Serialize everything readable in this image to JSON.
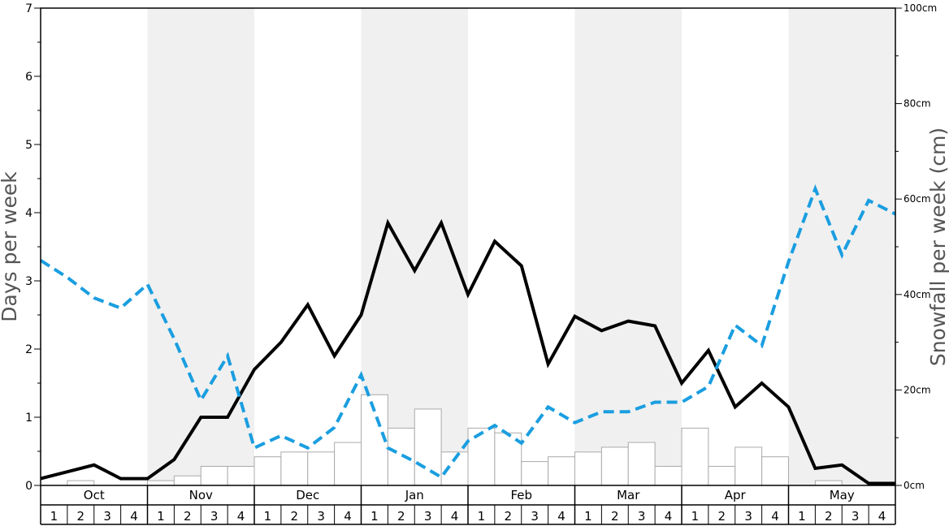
{
  "chart_data": {
    "type": "bar+line",
    "left_axis": {
      "label": "Days per week",
      "ylim": [
        0,
        7
      ],
      "ticks": [
        "0",
        "1",
        "2",
        "3",
        "4",
        "5",
        "6",
        "7"
      ]
    },
    "right_axis": {
      "label": "Snowfall per week (cm)",
      "ylim": [
        0,
        100
      ],
      "ticks": [
        "0cm",
        "20cm",
        "40cm",
        "60cm",
        "80cm",
        "100cm"
      ]
    },
    "months": [
      "Oct",
      "Nov",
      "Dec",
      "Jan",
      "Feb",
      "Mar",
      "Apr",
      "May"
    ],
    "weeks": [
      "1",
      "2",
      "3",
      "4"
    ],
    "shaded_months": [
      "Nov",
      "Jan",
      "Mar",
      "May"
    ],
    "colors": {
      "shade": "#f0f0f0",
      "bar_fill": "#ffffff",
      "bar_stroke": "#aaaaaa",
      "solid_line": "#000000",
      "dashed_line": "#1a9ee0",
      "axis": "#000000"
    },
    "series": [
      {
        "kind": "bar",
        "axis": "right",
        "values": [
          0,
          1,
          0,
          0,
          1,
          2,
          4,
          4,
          6,
          7,
          7,
          9,
          19,
          12,
          16,
          7,
          12,
          11,
          5,
          6,
          7,
          8,
          9,
          4,
          12,
          4,
          8,
          6,
          0,
          1,
          0,
          0
        ]
      },
      {
        "kind": "line",
        "style": "solid",
        "axis": "left",
        "values": [
          0.1,
          0.2,
          0.3,
          0.1,
          0.1,
          0.38,
          1.0,
          1.0,
          1.7,
          2.1,
          2.65,
          1.9,
          2.5,
          3.85,
          3.15,
          3.85,
          2.8,
          3.58,
          3.22,
          1.78,
          2.48,
          2.27,
          2.41,
          2.34,
          1.5,
          1.98,
          1.15,
          1.5,
          1.15,
          0.25,
          0.3,
          0.03,
          0.03
        ]
      },
      {
        "kind": "line",
        "style": "dashed",
        "axis": "left",
        "values": [
          3.3,
          3.05,
          2.75,
          2.6,
          2.95,
          2.15,
          1.25,
          1.9,
          0.55,
          0.73,
          0.55,
          0.85,
          1.62,
          0.55,
          0.35,
          0.12,
          0.65,
          0.88,
          0.62,
          1.15,
          0.92,
          1.08,
          1.08,
          1.22,
          1.22,
          1.45,
          2.35,
          2.05,
          3.28,
          4.35,
          3.38,
          4.18,
          3.98
        ]
      }
    ]
  }
}
